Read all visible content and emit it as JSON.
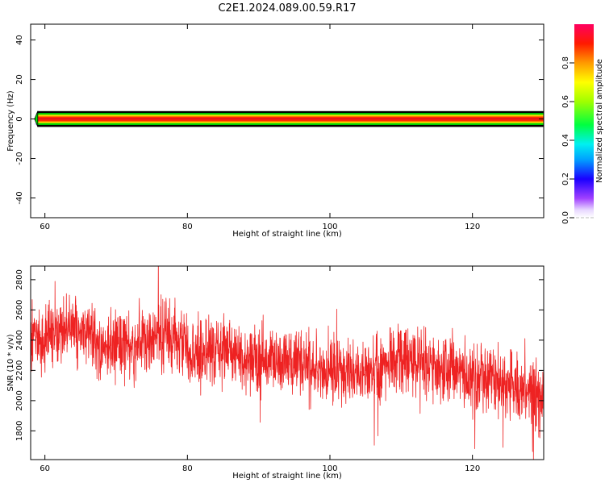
{
  "title": "C2E1.2024.089.00.59.R17",
  "chart_data": [
    {
      "type": "heatmap",
      "xlabel": "Height of straight line (km)",
      "ylabel": "Frequency (Hz)",
      "xlim": [
        58,
        130
      ],
      "ylim": [
        -50,
        48
      ],
      "xticks": [
        60,
        80,
        100,
        120
      ],
      "yticks": [
        40,
        20,
        0,
        -20,
        -40
      ],
      "ridge": {
        "x_start": 59,
        "x_end": 130,
        "frequency": 0,
        "core_value": 0.9,
        "spread_hz": 2.5
      },
      "colorbar": {
        "label": "Normalized spectral amplitude",
        "range": [
          0,
          1
        ],
        "ticks": [
          0.0,
          0.2,
          0.4,
          0.6,
          0.8
        ]
      },
      "colors": {
        "background": "#ffffff",
        "outline": "#000000"
      }
    },
    {
      "type": "line",
      "xlabel": "Height of straight line (km)",
      "ylabel": "SNR (10 * v/v)",
      "xlim": [
        58,
        130
      ],
      "ylim": [
        1610,
        2890
      ],
      "xticks": [
        60,
        80,
        100,
        120
      ],
      "yticks": [
        1800,
        2000,
        2200,
        2400,
        2600,
        2800
      ],
      "color": "#ee2222",
      "trend": {
        "x": [
          58,
          60,
          62,
          64,
          66,
          68,
          70,
          72,
          74,
          76,
          78,
          80,
          82,
          84,
          86,
          88,
          90,
          92,
          94,
          96,
          98,
          100,
          102,
          104,
          106,
          108,
          110,
          112,
          114,
          116,
          118,
          120,
          122,
          124,
          126,
          128,
          130
        ],
        "y": [
          2420,
          2400,
          2460,
          2480,
          2430,
          2360,
          2350,
          2380,
          2400,
          2450,
          2420,
          2320,
          2290,
          2330,
          2340,
          2270,
          2240,
          2270,
          2250,
          2230,
          2200,
          2210,
          2180,
          2200,
          2220,
          2240,
          2260,
          2270,
          2230,
          2200,
          2190,
          2150,
          2130,
          2110,
          2080,
          2040,
          2000
        ]
      },
      "noise_spread": 320
    }
  ]
}
